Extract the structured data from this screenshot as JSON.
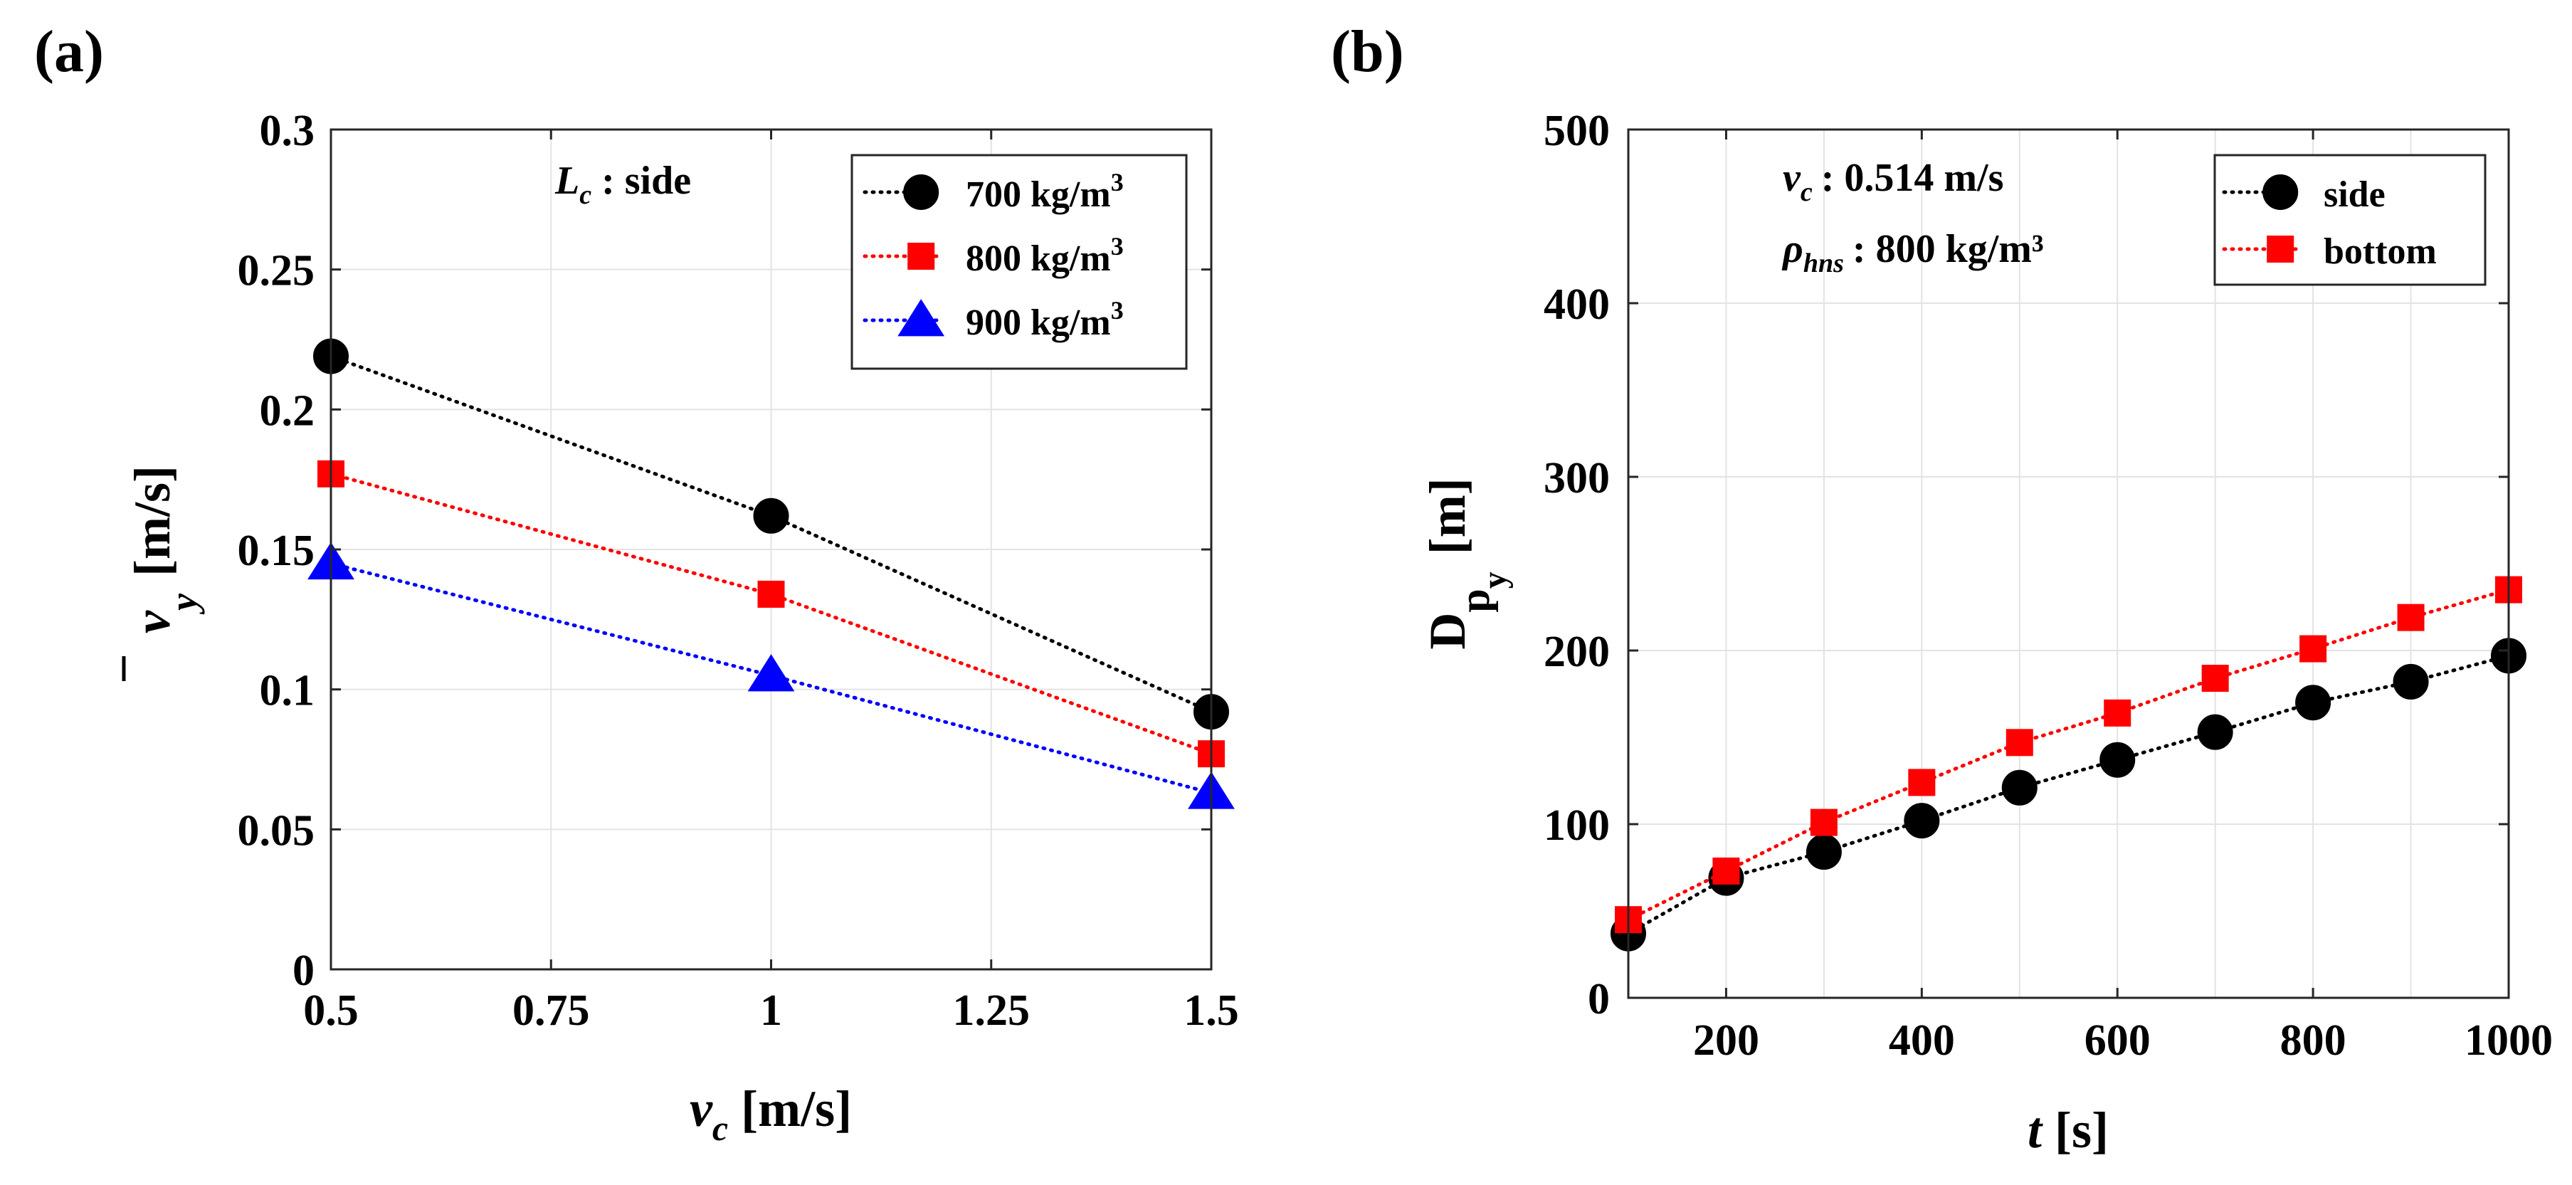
{
  "chart_data": [
    {
      "panel_label": "(a)",
      "type": "line",
      "x": [
        0.5,
        1,
        1.5
      ],
      "x_ticks": [
        0.5,
        0.75,
        1,
        1.25,
        1.5
      ],
      "x_tick_labels": [
        "0.5",
        "0.75",
        "1",
        "1.25",
        "1.5"
      ],
      "y_ticks": [
        0,
        0.05,
        0.1,
        0.15,
        0.2,
        0.25,
        0.3
      ],
      "y_tick_labels": [
        "0",
        "0.05",
        "0.1",
        "0.15",
        "0.2",
        "0.25",
        "0.3"
      ],
      "xlim": [
        0.5,
        1.5
      ],
      "ylim": [
        0,
        0.3
      ],
      "xlabel": {
        "main": "v",
        "sub": "c",
        "unit": "[m/s]"
      },
      "ylabel": {
        "main": "v",
        "sub": "y",
        "unit": "[m/s]",
        "overbar": true
      },
      "annotation": {
        "main": "L",
        "sub": "c",
        "rest": ": side"
      },
      "grid": true,
      "legend_position": "top-right",
      "series": [
        {
          "name": "700 kg/m",
          "sup": "3",
          "color": "#000000",
          "marker": "circle",
          "values": [
            0.219,
            0.162,
            0.092
          ]
        },
        {
          "name": "800 kg/m",
          "sup": "3",
          "color": "#ff0000",
          "marker": "square",
          "values": [
            0.177,
            0.134,
            0.077
          ]
        },
        {
          "name": "900 kg/m",
          "sup": "3",
          "color": "#0000ff",
          "marker": "triangle",
          "values": [
            0.145,
            0.105,
            0.063
          ]
        }
      ]
    },
    {
      "panel_label": "(b)",
      "type": "line",
      "x": [
        100,
        200,
        300,
        400,
        500,
        600,
        700,
        800,
        900,
        1000
      ],
      "x_ticks": [
        200,
        400,
        600,
        800,
        1000
      ],
      "x_tick_labels": [
        "200",
        "400",
        "600",
        "800",
        "1000"
      ],
      "x_grid": [
        100,
        200,
        300,
        400,
        500,
        600,
        700,
        800,
        900,
        1000
      ],
      "y_ticks": [
        0,
        100,
        200,
        300,
        400,
        500
      ],
      "y_tick_labels": [
        "0",
        "100",
        "200",
        "300",
        "400",
        "500"
      ],
      "xlim": [
        100,
        1000
      ],
      "ylim": [
        0,
        500
      ],
      "xlabel": {
        "main": "t",
        "unit": "[s]"
      },
      "ylabel": {
        "main": "D",
        "sub": "p",
        "subsub": "y",
        "unit": "[m]"
      },
      "annotations": [
        {
          "main": "v",
          "sub": "c",
          "rest": ": 0.514 m/s"
        },
        {
          "main": "ρ",
          "sub": "hns",
          "rest": ": 800 kg/m³"
        }
      ],
      "grid": true,
      "legend_position": "top-right",
      "series": [
        {
          "name": "side",
          "color": "#000000",
          "marker": "circle",
          "values": [
            37,
            69,
            84,
            102,
            121,
            137,
            153,
            170,
            182,
            197
          ]
        },
        {
          "name": "bottom",
          "color": "#ff0000",
          "marker": "square",
          "values": [
            45,
            73,
            101,
            124,
            147,
            164,
            184,
            201,
            219,
            235
          ]
        }
      ]
    }
  ]
}
